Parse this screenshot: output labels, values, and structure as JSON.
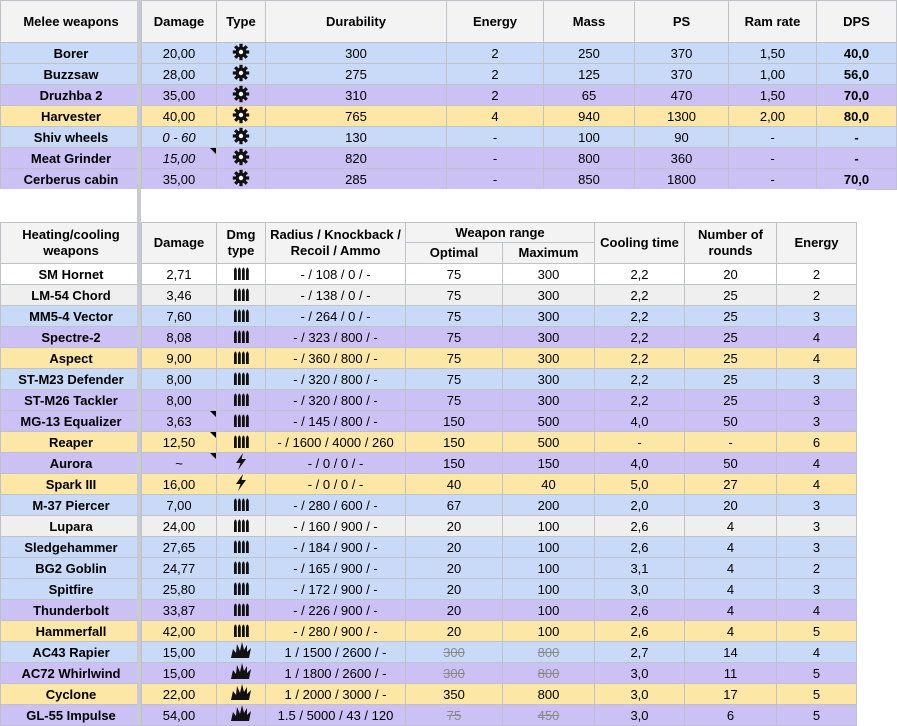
{
  "melee": {
    "headers": [
      "Melee weapons",
      "Damage",
      "Type",
      "Durability",
      "Energy",
      "Mass",
      "PS",
      "Ram rate",
      "DPS"
    ],
    "rows": [
      {
        "name": "Borer",
        "damage": "20,00",
        "type": "saw",
        "durability": "300",
        "energy": "2",
        "mass": "250",
        "ps": "370",
        "ram": "1,50",
        "dps": "40,0",
        "color": "blue"
      },
      {
        "name": "Buzzsaw",
        "damage": "28,00",
        "type": "saw",
        "durability": "275",
        "energy": "2",
        "mass": "125",
        "ps": "370",
        "ram": "1,00",
        "dps": "56,0",
        "color": "blue"
      },
      {
        "name": "Druzhba 2",
        "damage": "35,00",
        "type": "saw",
        "durability": "310",
        "energy": "2",
        "mass": "65",
        "ps": "470",
        "ram": "1,50",
        "dps": "70,0",
        "color": "purple"
      },
      {
        "name": "Harvester",
        "damage": "40,00",
        "type": "saw",
        "durability": "765",
        "energy": "4",
        "mass": "940",
        "ps": "1300",
        "ram": "2,00",
        "dps": "80,0",
        "color": "yellow"
      },
      {
        "name": "Shiv wheels",
        "damage": "0 - 60",
        "damage_italic": true,
        "type": "saw",
        "durability": "130",
        "energy": "-",
        "mass": "100",
        "ps": "90",
        "ram": "-",
        "dps": "-",
        "color": "blue"
      },
      {
        "name": "Meat Grinder",
        "damage": "15,00",
        "damage_italic": true,
        "damage_note": true,
        "type": "saw",
        "durability": "820",
        "energy": "-",
        "mass": "800",
        "ps": "360",
        "ram": "-",
        "dps": "-",
        "color": "purple"
      },
      {
        "name": "Cerberus cabin",
        "damage": "35,00",
        "type": "saw",
        "durability": "285",
        "energy": "-",
        "mass": "850",
        "ps": "1800",
        "ram": "-",
        "dps": "70,0",
        "color": "purple"
      }
    ]
  },
  "heat": {
    "headers": {
      "name": "Heating/cooling weapons",
      "damage": "Damage",
      "dmg_type": "Dmg type",
      "radius": "Radius / Knockback / Recoil / Ammo",
      "range": "Weapon range",
      "optimal": "Optimal",
      "maximum": "Maximum",
      "cooling": "Cooling time",
      "rounds": "Number of rounds",
      "energy": "Energy"
    },
    "rows": [
      {
        "name": "SM Hornet",
        "damage": "2,71",
        "type": "bullets",
        "radius": "- / 108 / 0 / -",
        "optimal": "75",
        "maximum": "300",
        "cooling": "2,2",
        "rounds": "20",
        "energy": "2",
        "color": "white"
      },
      {
        "name": "LM-54 Chord",
        "damage": "3,46",
        "type": "bullets",
        "radius": "- / 138 / 0 / -",
        "optimal": "75",
        "maximum": "300",
        "cooling": "2,2",
        "rounds": "25",
        "energy": "2",
        "color": "gray"
      },
      {
        "name": "MM5-4 Vector",
        "damage": "7,60",
        "type": "bullets",
        "radius": "- / 264 / 0 / -",
        "optimal": "75",
        "maximum": "300",
        "cooling": "2,2",
        "rounds": "25",
        "energy": "3",
        "color": "blue"
      },
      {
        "name": "Spectre-2",
        "damage": "8,08",
        "type": "bullets",
        "radius": "- / 323 / 800 / -",
        "optimal": "75",
        "maximum": "300",
        "cooling": "2,2",
        "rounds": "25",
        "energy": "4",
        "color": "purple"
      },
      {
        "name": "Aspect",
        "damage": "9,00",
        "type": "bullets",
        "radius": "- / 360 / 800 / -",
        "optimal": "75",
        "maximum": "300",
        "cooling": "2,2",
        "rounds": "25",
        "energy": "4",
        "color": "yellow"
      },
      {
        "name": "ST-M23 Defender",
        "damage": "8,00",
        "type": "bullets",
        "radius": "- / 320 / 800 / -",
        "optimal": "75",
        "maximum": "300",
        "cooling": "2,2",
        "rounds": "25",
        "energy": "3",
        "color": "blue"
      },
      {
        "name": "ST-M26 Tackler",
        "damage": "8,00",
        "type": "bullets",
        "radius": "- / 320 / 800 / -",
        "optimal": "75",
        "maximum": "300",
        "cooling": "2,2",
        "rounds": "25",
        "energy": "3",
        "color": "purple"
      },
      {
        "name": "MG-13 Equalizer",
        "damage": "3,63",
        "damage_note": true,
        "type": "bullets",
        "radius": "- / 145 / 800 / -",
        "optimal": "150",
        "maximum": "500",
        "cooling": "4,0",
        "rounds": "50",
        "energy": "3",
        "color": "purple"
      },
      {
        "name": "Reaper",
        "damage": "12,50",
        "damage_note": true,
        "type": "bullets",
        "radius": "- / 1600 / 4000 / 260",
        "optimal": "150",
        "maximum": "500",
        "cooling": "-",
        "rounds": "-",
        "energy": "6",
        "color": "yellow"
      },
      {
        "name": "Aurora",
        "damage": "~",
        "damage_note": true,
        "type": "lightning",
        "radius": "- / 0 / 0 / -",
        "optimal": "150",
        "maximum": "150",
        "cooling": "4,0",
        "rounds": "50",
        "energy": "4",
        "color": "purple"
      },
      {
        "name": "Spark III",
        "damage": "16,00",
        "type": "lightning",
        "radius": "- / 0 / 0 / -",
        "optimal": "40",
        "maximum": "40",
        "cooling": "5,0",
        "rounds": "27",
        "energy": "4",
        "color": "yellow"
      },
      {
        "name": "M-37 Piercer",
        "damage": "7,00",
        "type": "bullets",
        "radius": "- / 280 / 600 / -",
        "optimal": "67",
        "maximum": "200",
        "cooling": "2,0",
        "rounds": "20",
        "energy": "3",
        "color": "blue"
      },
      {
        "name": "Lupara",
        "damage": "24,00",
        "type": "bullets",
        "radius": "- / 160 / 900 / -",
        "optimal": "20",
        "maximum": "100",
        "cooling": "2,6",
        "rounds": "4",
        "energy": "3",
        "color": "gray"
      },
      {
        "name": "Sledgehammer",
        "damage": "27,65",
        "type": "bullets",
        "radius": "- / 184 / 900 / -",
        "optimal": "20",
        "maximum": "100",
        "cooling": "2,6",
        "rounds": "4",
        "energy": "3",
        "color": "blue"
      },
      {
        "name": "BG2 Goblin",
        "damage": "24,77",
        "type": "bullets",
        "radius": "- / 165 / 900 / -",
        "optimal": "20",
        "maximum": "100",
        "cooling": "3,1",
        "rounds": "4",
        "energy": "2",
        "color": "blue"
      },
      {
        "name": "Spitfire",
        "damage": "25,80",
        "type": "bullets",
        "radius": "- / 172 / 900 / -",
        "optimal": "20",
        "maximum": "100",
        "cooling": "3,0",
        "rounds": "4",
        "energy": "3",
        "color": "blue"
      },
      {
        "name": "Thunderbolt",
        "damage": "33,87",
        "type": "bullets",
        "radius": "- / 226 / 900 / -",
        "optimal": "20",
        "maximum": "100",
        "cooling": "2,6",
        "rounds": "4",
        "energy": "4",
        "color": "purple"
      },
      {
        "name": "Hammerfall",
        "damage": "42,00",
        "type": "bullets",
        "radius": "- / 280 / 900 / -",
        "optimal": "20",
        "maximum": "100",
        "cooling": "2,6",
        "rounds": "4",
        "energy": "5",
        "color": "yellow"
      },
      {
        "name": "AC43 Rapier",
        "damage": "15,00",
        "type": "explosive",
        "radius": "1 / 1500 / 2600 / -",
        "optimal": "300",
        "optimal_strike": true,
        "maximum": "800",
        "maximum_strike": true,
        "cooling": "2,7",
        "rounds": "14",
        "energy": "4",
        "color": "blue"
      },
      {
        "name": "AC72 Whirlwind",
        "damage": "15,00",
        "type": "explosive",
        "radius": "1 / 1800 / 2600 / -",
        "optimal": "300",
        "optimal_strike": true,
        "maximum": "800",
        "maximum_strike": true,
        "cooling": "3,0",
        "rounds": "11",
        "energy": "5",
        "color": "purple"
      },
      {
        "name": "Cyclone",
        "damage": "22,00",
        "type": "explosive",
        "radius": "1 / 2000 / 3000 / -",
        "optimal": "350",
        "maximum": "800",
        "cooling": "3,0",
        "rounds": "17",
        "energy": "5",
        "color": "yellow"
      },
      {
        "name": "GL-55 Impulse",
        "damage": "54,00",
        "type": "explosive",
        "radius": "1.5 / 5000 / 43 / 120",
        "optimal": "75",
        "optimal_strike": true,
        "maximum": "450",
        "maximum_strike": true,
        "cooling": "3,0",
        "rounds": "6",
        "energy": "5",
        "color": "purple"
      }
    ]
  },
  "icons": {
    "saw": "saw-blade-icon",
    "bullets": "bullets-icon",
    "lightning": "lightning-icon",
    "explosive": "explosion-icon"
  },
  "colors": {
    "blue": "#c9daf8",
    "purple": "#cbc1f5",
    "yellow": "#fde7a6",
    "gray": "#efefef",
    "white": "#ffffff",
    "header": "#f3f3f3"
  }
}
